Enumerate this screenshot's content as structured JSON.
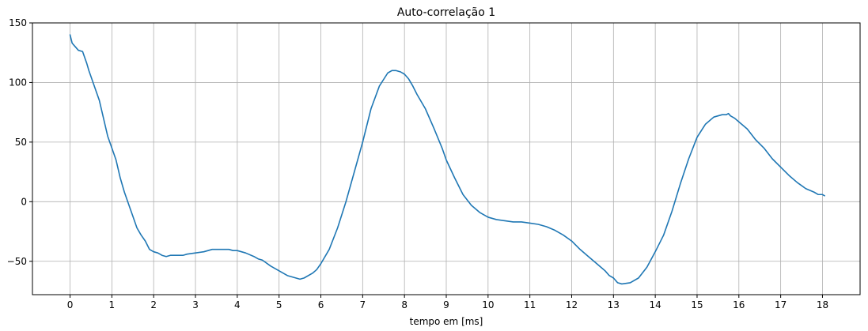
{
  "chart_data": {
    "type": "line",
    "title": "Auto-correlação 1",
    "xlabel": "tempo em [ms]",
    "ylabel": "",
    "xlim": [
      -0.9,
      18.9
    ],
    "ylim": [
      -78,
      150
    ],
    "xticks": [
      0,
      1,
      2,
      3,
      4,
      5,
      6,
      7,
      8,
      9,
      10,
      11,
      12,
      13,
      14,
      15,
      16,
      17,
      18
    ],
    "yticks": [
      -50,
      0,
      50,
      100,
      150
    ],
    "grid": true,
    "line_color": "#1f77b4",
    "series": [
      {
        "x": [
          0,
          0.05,
          0.1,
          0.2,
          0.3,
          0.4,
          0.45,
          0.5,
          0.6,
          0.7,
          0.8,
          0.9,
          1.0,
          1.1,
          1.2,
          1.3,
          1.4,
          1.5,
          1.6,
          1.7,
          1.8,
          1.9,
          2.0,
          2.1,
          2.2,
          2.3,
          2.4,
          2.5,
          2.7,
          2.8,
          3.0,
          3.2,
          3.4,
          3.5,
          3.6,
          3.8,
          3.9,
          4.0,
          4.2,
          4.4,
          4.5,
          4.6,
          4.8,
          5.0,
          5.2,
          5.4,
          5.5,
          5.6,
          5.8,
          5.9,
          6.0,
          6.2,
          6.4,
          6.6,
          6.8,
          7.0,
          7.2,
          7.4,
          7.6,
          7.7,
          7.8,
          7.9,
          8.0,
          8.1,
          8.2,
          8.3,
          8.5,
          8.7,
          8.9,
          9.0,
          9.2,
          9.4,
          9.6,
          9.8,
          10.0,
          10.2,
          10.4,
          10.6,
          10.8,
          11.0,
          11.2,
          11.4,
          11.6,
          11.8,
          12.0,
          12.2,
          12.4,
          12.6,
          12.8,
          12.9,
          13.0,
          13.1,
          13.2,
          13.4,
          13.6,
          13.8,
          14.0,
          14.2,
          14.4,
          14.6,
          14.8,
          15.0,
          15.2,
          15.4,
          15.5,
          15.6,
          15.7,
          15.75,
          15.8,
          15.9,
          16.0,
          16.2,
          16.4,
          16.6,
          16.8,
          17.0,
          17.2,
          17.4,
          17.6,
          17.8,
          17.9,
          18.0,
          18.05
        ],
        "y": [
          140,
          133,
          131,
          127,
          126,
          116,
          110,
          105,
          95,
          85,
          70,
          55,
          45,
          35,
          20,
          8,
          -2,
          -12,
          -22,
          -28,
          -33,
          -40,
          -42,
          -43,
          -45,
          -46,
          -45,
          -45,
          -45,
          -44,
          -43,
          -42,
          -40,
          -40,
          -40,
          -40,
          -41,
          -41,
          -43,
          -46,
          -48,
          -49,
          -54,
          -58,
          -62,
          -64,
          -65,
          -64,
          -60,
          -57,
          -52,
          -40,
          -22,
          0,
          25,
          50,
          78,
          97,
          108,
          110,
          110,
          109,
          107,
          103,
          97,
          90,
          78,
          62,
          45,
          35,
          20,
          6,
          -3,
          -9,
          -13,
          -15,
          -16,
          -17,
          -17,
          -18,
          -19,
          -21,
          -24,
          -28,
          -33,
          -40,
          -46,
          -52,
          -58,
          -62,
          -64,
          -68,
          -69,
          -68,
          -64,
          -55,
          -42,
          -28,
          -8,
          15,
          36,
          54,
          65,
          71,
          72,
          73,
          73,
          74,
          72,
          70,
          67,
          61,
          52,
          45,
          36,
          29,
          22,
          16,
          11,
          8,
          6,
          6,
          5
        ]
      }
    ]
  }
}
